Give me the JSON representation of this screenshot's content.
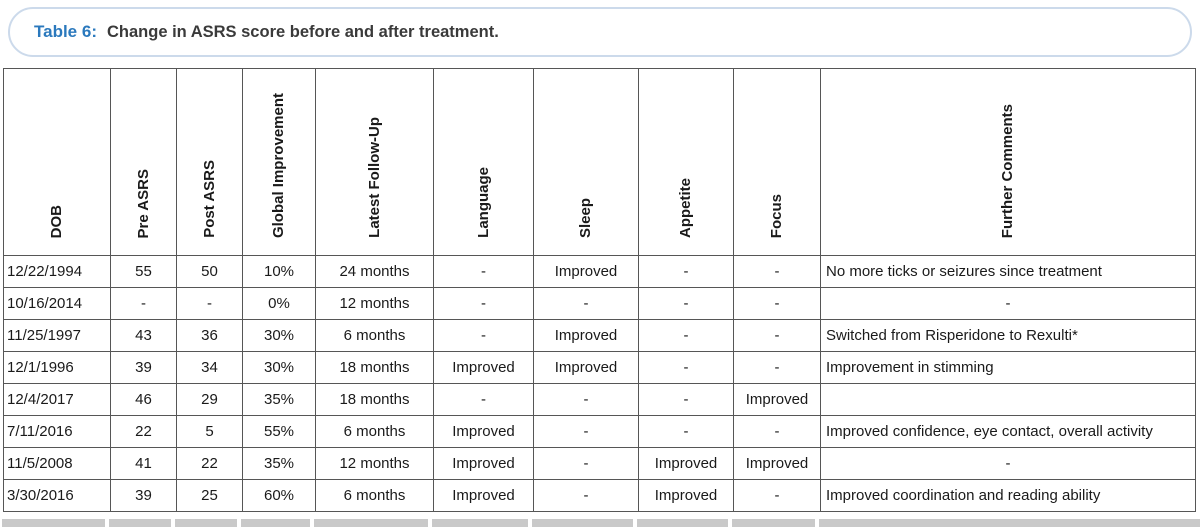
{
  "caption": {
    "label": "Table 6:",
    "text": "Change in ASRS score before and after treatment."
  },
  "table": {
    "headers": [
      "DOB",
      "Pre ASRS",
      "Post ASRS",
      "Global Improvement",
      "Latest Follow-Up",
      "Language",
      "Sleep",
      "Appetite",
      "Focus",
      "Further Comments"
    ],
    "rows": [
      [
        "12/22/1994",
        "55",
        "50",
        "10%",
        "24 months",
        "-",
        "Improved",
        "-",
        "-",
        "No more ticks or seizures since treatment"
      ],
      [
        "10/16/2014",
        "-",
        "-",
        "0%",
        "12 months",
        "-",
        "-",
        "-",
        "-",
        "-"
      ],
      [
        "11/25/1997",
        "43",
        "36",
        "30%",
        "6 months",
        "-",
        "Improved",
        "-",
        "-",
        "Switched from Risperidone to Rexulti*"
      ],
      [
        "12/1/1996",
        "39",
        "34",
        "30%",
        "18 months",
        "Improved",
        "Improved",
        "-",
        "-",
        "Improvement in stimming"
      ],
      [
        "12/4/2017",
        "46",
        "29",
        "35%",
        "18 months",
        "-",
        "-",
        "-",
        "Improved",
        ""
      ],
      [
        "7/11/2016",
        "22",
        "5",
        "55%",
        "6 months",
        "Improved",
        "-",
        "-",
        "-",
        "Improved confidence, eye contact, overall activity"
      ],
      [
        "11/5/2008",
        "41",
        "22",
        "35%",
        "12 months",
        "Improved",
        "-",
        "Improved",
        "Improved",
        "-"
      ],
      [
        "3/30/2016",
        "39",
        "25",
        "60%",
        "6 months",
        "Improved",
        "-",
        "Improved",
        "-",
        "Improved coordination and reading ability"
      ]
    ]
  },
  "colors": {
    "accent_blue": "#2b79bd",
    "caption_border": "#ccdaeb",
    "grid_line": "#565656",
    "footer_strip_gray": "#c9c9c9"
  }
}
